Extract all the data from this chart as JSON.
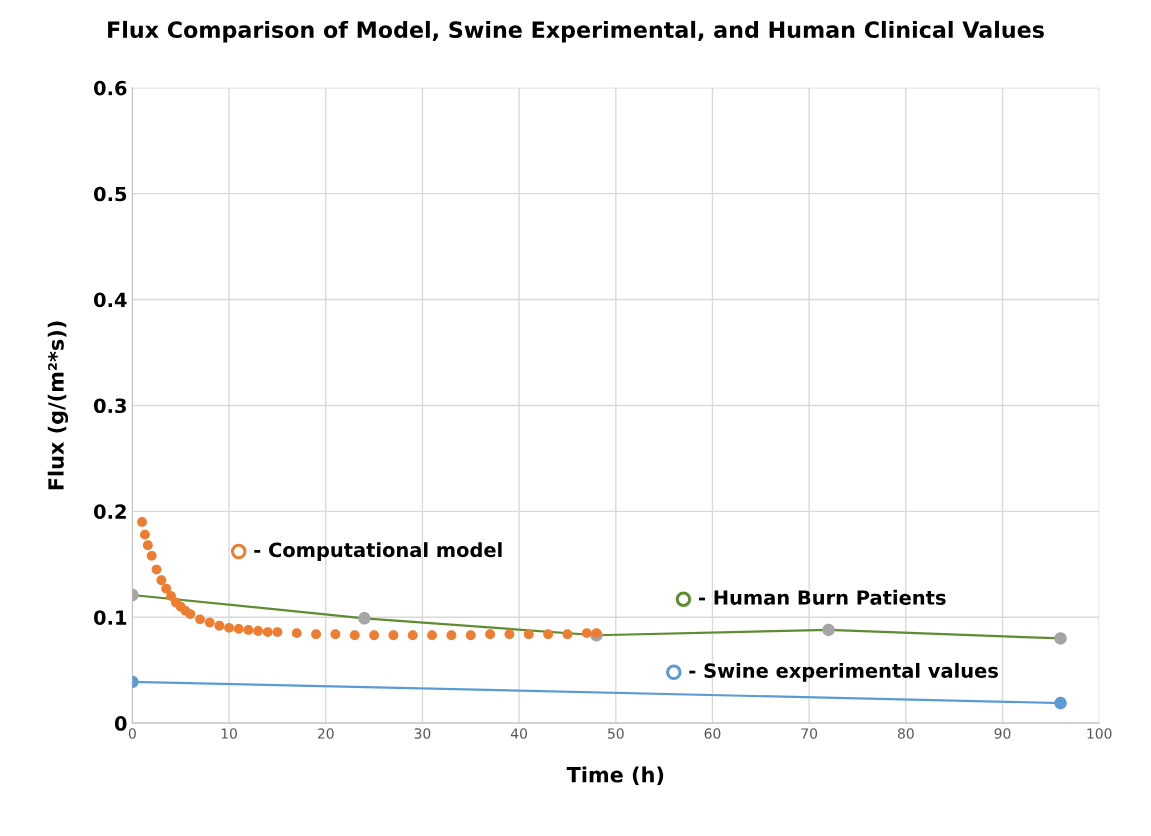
{
  "chart_data": {
    "type": "line",
    "title": "Flux Comparison of Model, Swine Experimental, and Human Clinical Values",
    "xlabel": "Time (h)",
    "ylabel": "Flux (g/(m²*s))",
    "xlim": [
      0,
      100
    ],
    "xticks": [
      0,
      10,
      20,
      30,
      40,
      50,
      60,
      70,
      80,
      90,
      100
    ],
    "ylim": [
      0,
      0.6
    ],
    "yticks": [
      0,
      0.1,
      0.2,
      0.3,
      0.4,
      0.5,
      0.6
    ],
    "grid": true,
    "marker": "circle",
    "legend": "center",
    "series": [
      {
        "name": "- Computational model",
        "type": "scatter",
        "color": "#ed7d31",
        "x": [
          1,
          1.3,
          1.6,
          2,
          2.5,
          3,
          3.5,
          4,
          4.5,
          5,
          5.5,
          6,
          7,
          8,
          9,
          10,
          11,
          12,
          13,
          14,
          15,
          17,
          19,
          21,
          23,
          25,
          27,
          29,
          31,
          33,
          35,
          37,
          39,
          41,
          43,
          45,
          47,
          48
        ],
        "values": [
          0.19,
          0.178,
          0.168,
          0.158,
          0.145,
          0.135,
          0.127,
          0.12,
          0.114,
          0.11,
          0.106,
          0.103,
          0.098,
          0.095,
          0.092,
          0.09,
          0.089,
          0.088,
          0.087,
          0.086,
          0.086,
          0.085,
          0.084,
          0.084,
          0.083,
          0.083,
          0.083,
          0.083,
          0.083,
          0.083,
          0.083,
          0.084,
          0.084,
          0.084,
          0.084,
          0.084,
          0.085,
          0.085
        ]
      },
      {
        "name": "- Human Burn Patients",
        "color": "#5e8c31",
        "colors": [
          "#a5a5a5",
          "#a5a5a5",
          "#a5a5a5",
          "#a5a5a5",
          "#a5a5a5"
        ],
        "x": [
          0,
          24,
          48,
          72,
          96
        ],
        "values": [
          0.121,
          0.099,
          0.083,
          0.088,
          0.08
        ]
      },
      {
        "name": "- Swine experimental values",
        "color": "#5b9bd5",
        "x": [
          0,
          96
        ],
        "values": [
          0.039,
          0.019
        ]
      }
    ]
  }
}
